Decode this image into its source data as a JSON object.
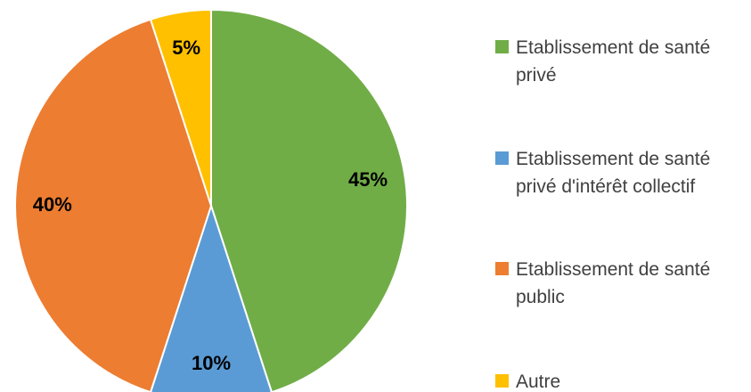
{
  "chart_data": {
    "type": "pie",
    "categories": [
      "Etablissement de santé privé",
      "Etablissement de santé privé d'intérêt collectif",
      "Etablissement de santé public",
      "Autre"
    ],
    "values": [
      45,
      10,
      40,
      5
    ],
    "value_labels": [
      "45%",
      "10%",
      "40%",
      "5%"
    ],
    "colors": [
      "#70ad47",
      "#5b9bd5",
      "#ed7d31",
      "#ffc000"
    ],
    "legend": "right"
  }
}
